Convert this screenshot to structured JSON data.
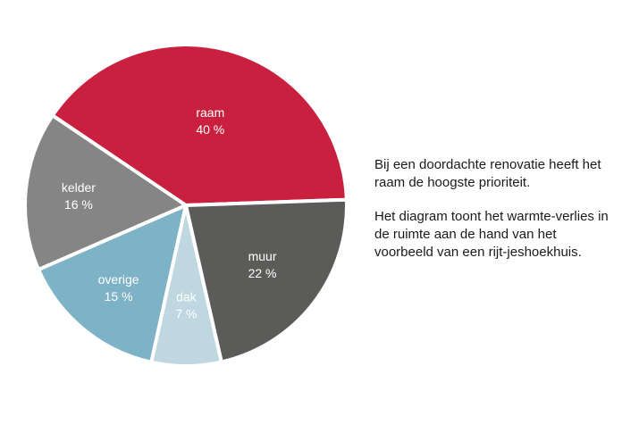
{
  "chart_data": {
    "type": "pie",
    "title": "",
    "slices": [
      {
        "label": "raam",
        "value": 40,
        "value_label": "40 %",
        "color": "#c8203e"
      },
      {
        "label": "kelder",
        "value": 16,
        "value_label": "16 %",
        "color": "#858585"
      },
      {
        "label": "overige",
        "value": 15,
        "value_label": "15 %",
        "color": "#7eb2c6"
      },
      {
        "label": "dak",
        "value": 7,
        "value_label": "7 %",
        "color": "#bfd7e0"
      },
      {
        "label": "muur",
        "value": 22,
        "value_label": "22 %",
        "color": "#5b5c59"
      }
    ],
    "legend": "none"
  },
  "caption": {
    "paragraph1": "Bij een doordachte renovatie heeft het raam de hoogste prioriteit.",
    "paragraph2": "Het diagram toont het warmte-verlies in de ruimte aan de hand van het voorbeeld van een rijt-jeshoekhuis."
  }
}
